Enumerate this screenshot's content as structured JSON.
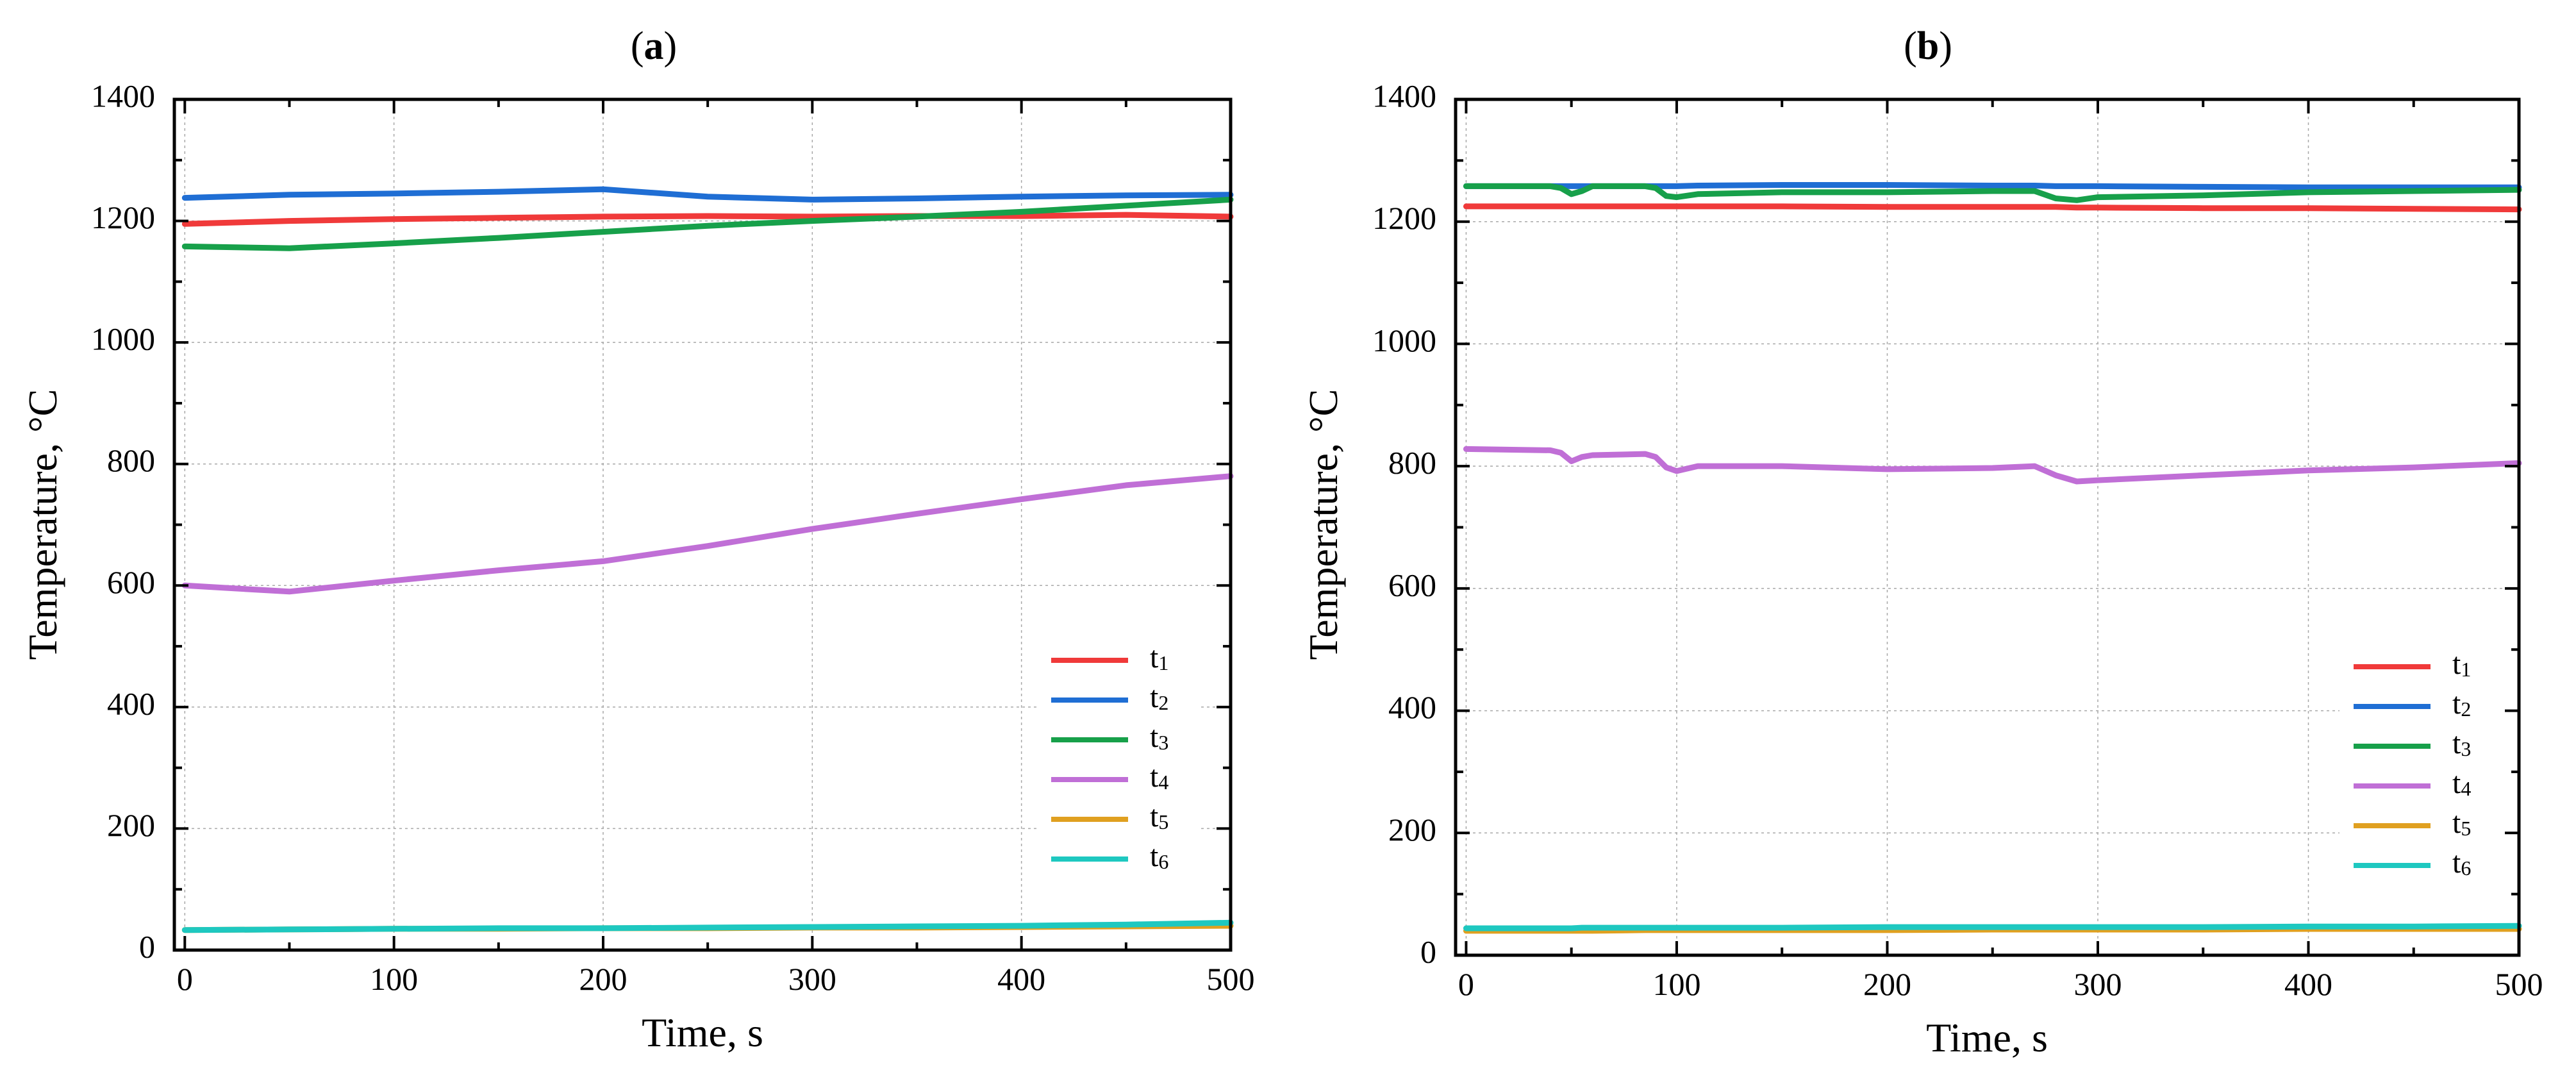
{
  "chart_data": [
    {
      "type": "line",
      "title": "(a)",
      "title_parts": [
        "(",
        "a",
        ")"
      ],
      "xlabel": "Time, s",
      "ylabel": "Temperature, °C",
      "xlim": [
        -5,
        500
      ],
      "ylim": [
        0,
        1400
      ],
      "xticks": [
        0,
        100,
        200,
        300,
        400,
        500
      ],
      "yticks": [
        0,
        200,
        400,
        600,
        800,
        1000,
        1200,
        1400
      ],
      "grid": true,
      "legend_position": "lower-right",
      "x": [
        0,
        50,
        100,
        150,
        200,
        250,
        300,
        350,
        400,
        450,
        500
      ],
      "series": [
        {
          "name": "t1",
          "base": "t",
          "sub": "1",
          "color": "#f03a3a",
          "values": [
            1195,
            1200,
            1203,
            1205,
            1207,
            1208,
            1207,
            1208,
            1208,
            1210,
            1207
          ]
        },
        {
          "name": "t2",
          "base": "t",
          "sub": "2",
          "color": "#1f6ed4",
          "values": [
            1238,
            1243,
            1245,
            1248,
            1252,
            1240,
            1235,
            1237,
            1240,
            1242,
            1243
          ]
        },
        {
          "name": "t3",
          "base": "t",
          "sub": "3",
          "color": "#17a04a",
          "values": [
            1158,
            1155,
            1163,
            1172,
            1182,
            1192,
            1200,
            1207,
            1215,
            1225,
            1235
          ]
        },
        {
          "name": "t4",
          "base": "t",
          "sub": "4",
          "color": "#c06fd6",
          "values": [
            600,
            590,
            608,
            625,
            640,
            665,
            693,
            718,
            742,
            765,
            780
          ]
        },
        {
          "name": "t5",
          "base": "t",
          "sub": "5",
          "color": "#e0a020",
          "values": [
            33,
            34,
            35,
            35,
            36,
            36,
            37,
            37,
            38,
            39,
            40
          ]
        },
        {
          "name": "t6",
          "base": "t",
          "sub": "6",
          "color": "#1ec8c0",
          "values": [
            33,
            34,
            35,
            36,
            36,
            37,
            38,
            39,
            40,
            42,
            45
          ]
        }
      ]
    },
    {
      "type": "line",
      "title": "(b)",
      "title_parts": [
        "(",
        "b",
        ")"
      ],
      "xlabel": "Time, s",
      "ylabel": "Temperature, °C",
      "xlim": [
        -5,
        500
      ],
      "ylim": [
        0,
        1400
      ],
      "xticks": [
        0,
        100,
        200,
        300,
        400,
        500
      ],
      "yticks": [
        0,
        200,
        400,
        600,
        800,
        1000,
        1200,
        1400
      ],
      "grid": true,
      "legend_position": "lower-right",
      "x": [
        0,
        40,
        45,
        50,
        55,
        60,
        85,
        90,
        95,
        100,
        110,
        150,
        200,
        250,
        270,
        280,
        290,
        300,
        350,
        400,
        450,
        500
      ],
      "series": [
        {
          "name": "t1",
          "base": "t",
          "sub": "1",
          "color": "#f03a3a",
          "values": [
            1225,
            1225,
            1225,
            1225,
            1225,
            1225,
            1225,
            1225,
            1225,
            1225,
            1225,
            1225,
            1224,
            1224,
            1224,
            1224,
            1223,
            1223,
            1222,
            1222,
            1221,
            1220
          ]
        },
        {
          "name": "t2",
          "base": "t",
          "sub": "2",
          "color": "#1f6ed4",
          "values": [
            1258,
            1258,
            1258,
            1258,
            1258,
            1258,
            1258,
            1258,
            1258,
            1258,
            1259,
            1260,
            1260,
            1259,
            1259,
            1258,
            1258,
            1258,
            1257,
            1256,
            1256,
            1256
          ]
        },
        {
          "name": "t3",
          "base": "t",
          "sub": "3",
          "color": "#17a04a",
          "values": [
            1258,
            1258,
            1255,
            1245,
            1250,
            1258,
            1258,
            1255,
            1242,
            1240,
            1245,
            1248,
            1248,
            1250,
            1250,
            1238,
            1235,
            1240,
            1243,
            1248,
            1250,
            1252
          ]
        },
        {
          "name": "t4",
          "base": "t",
          "sub": "4",
          "color": "#c06fd6",
          "values": [
            828,
            826,
            822,
            808,
            815,
            818,
            820,
            815,
            798,
            792,
            800,
            800,
            795,
            797,
            800,
            785,
            775,
            777,
            785,
            793,
            798,
            805
          ]
        },
        {
          "name": "t5",
          "base": "t",
          "sub": "5",
          "color": "#e0a020",
          "values": [
            40,
            40,
            40,
            40,
            40,
            40,
            41,
            41,
            41,
            41,
            41,
            41,
            41,
            42,
            42,
            42,
            42,
            42,
            42,
            43,
            43,
            43
          ]
        },
        {
          "name": "t6",
          "base": "t",
          "sub": "6",
          "color": "#1ec8c0",
          "values": [
            44,
            44,
            44,
            44,
            45,
            45,
            45,
            45,
            45,
            45,
            45,
            45,
            46,
            46,
            46,
            46,
            46,
            46,
            46,
            47,
            47,
            48
          ]
        }
      ]
    }
  ]
}
